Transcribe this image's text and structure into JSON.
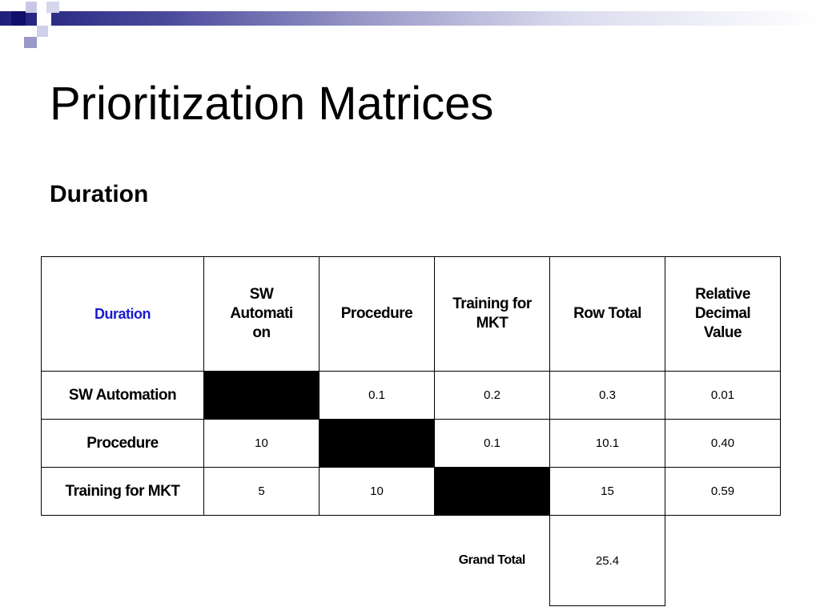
{
  "slide": {
    "title": "Prioritization Matrices",
    "subtitle": "Duration"
  },
  "matrix": {
    "corner": "Duration",
    "columns": [
      "SW Automati on",
      "Procedure",
      "Training for MKT",
      "Row Total",
      "Relative Decimal Value"
    ],
    "rows": [
      {
        "label": "SW Automation",
        "sw": "",
        "procedure": "0.1",
        "training": "0.2",
        "row_total": "0.3",
        "relative": "0.01"
      },
      {
        "label": "Procedure",
        "sw": "10",
        "procedure": "",
        "training": "0.1",
        "row_total": "10.1",
        "relative": "0.40"
      },
      {
        "label": "Training for MKT",
        "sw": "5",
        "procedure": "10",
        "training": "",
        "row_total": "15",
        "relative": "0.59"
      }
    ],
    "grand_total_label": "Grand Total",
    "grand_total": "25.4"
  }
}
